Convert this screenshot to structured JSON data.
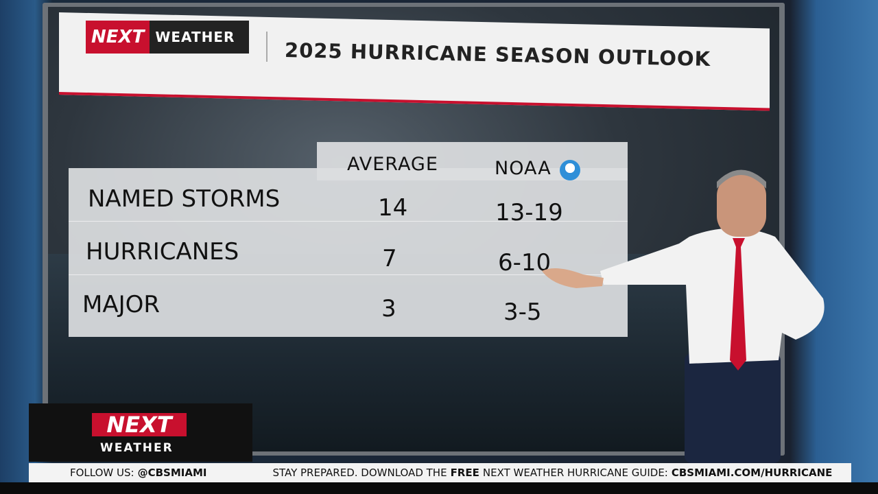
{
  "header": {
    "logo_next": "NEXT",
    "logo_weather": "WEATHER",
    "title": "2025 HURRICANE SEASON OUTLOOK"
  },
  "table": {
    "columns": [
      "AVERAGE",
      "NOAA"
    ],
    "rows": [
      [
        "NAMED STORMS",
        14,
        "13-19"
      ],
      [
        "HURRICANES",
        7,
        "6-10"
      ],
      [
        "MAJOR",
        3,
        "3-5"
      ]
    ]
  },
  "corner_logo": {
    "next": "NEXT",
    "weather": "WEATHER"
  },
  "ticker": {
    "follow_label": "FOLLOW US:",
    "handle": "@CBSMIAMI",
    "message_start": "STAY PREPARED. DOWNLOAD THE",
    "message_bold": "FREE",
    "message_end": "NEXT WEATHER HURRICANE GUIDE:",
    "url": "CBSMIAMI.COM/HURRICANE"
  }
}
